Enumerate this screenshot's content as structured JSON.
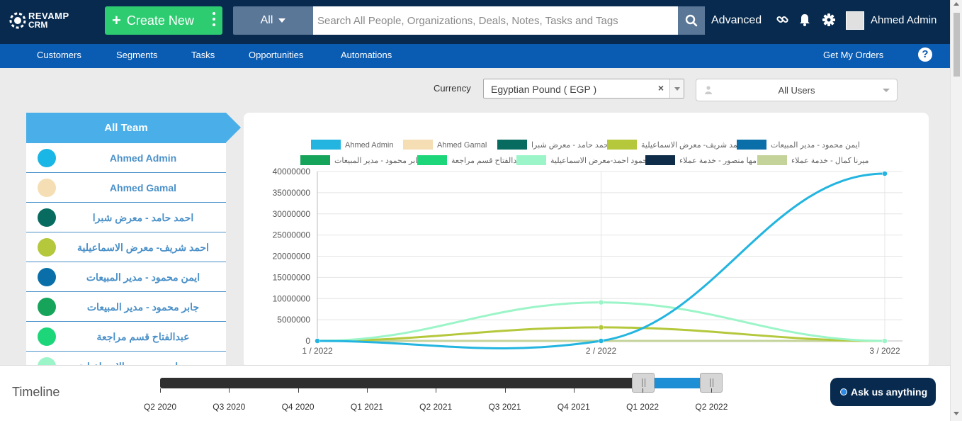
{
  "header": {
    "logo_line1": "REVAMP",
    "logo_line2": "CRM",
    "create_label": "Create New",
    "search_scope": "All",
    "search_placeholder": "Search All People, Organizations, Deals, Notes, Tasks and Tags",
    "advanced_label": "Advanced",
    "user_name": "Ahmed Admin"
  },
  "nav": {
    "items": [
      "Customers",
      "Segments",
      "Tasks",
      "Opportunities",
      "Automations"
    ],
    "right_item": "Get My Orders",
    "help_label": "?"
  },
  "filters": {
    "currency_label": "Currency",
    "currency_value": "Egyptian Pound ( EGP )",
    "clear_symbol": "×",
    "users_value": "All Users"
  },
  "team": {
    "header": "All Team",
    "members": [
      {
        "name": "Ahmed Admin",
        "color": "#1ab6e6"
      },
      {
        "name": "Ahmed Gamal",
        "color": "#f5deb3"
      },
      {
        "name": "احمد حامد - معرض شبرا",
        "color": "#086b60"
      },
      {
        "name": "احمد شريف- معرض الاسماعيلية",
        "color": "#b5c83c"
      },
      {
        "name": "ايمن محمود - مدير المبيعات",
        "color": "#0a6fa8"
      },
      {
        "name": "جابر محمود - مدير المبيعات",
        "color": "#16a45a"
      },
      {
        "name": "عبدالفتاح قسم مراجعة",
        "color": "#1ed67a"
      },
      {
        "name": "محمود احمد-معرض الاسماعيلية",
        "color": "#9cf5c8"
      }
    ]
  },
  "chart_data": {
    "type": "line",
    "categories": [
      "1 / 2022",
      "2 / 2022",
      "3 / 2022"
    ],
    "ylim": [
      0,
      40000000
    ],
    "yticks": [
      0,
      5000000,
      10000000,
      15000000,
      20000000,
      25000000,
      30000000,
      35000000,
      40000000
    ],
    "grid": true,
    "legend_position": "top",
    "series": [
      {
        "name": "Ahmed Admin",
        "color": "#23b5e0",
        "values": [
          0,
          0,
          39500000
        ]
      },
      {
        "name": "Ahmed Gamal",
        "color": "#f5deb3",
        "values": [
          0,
          0,
          0
        ]
      },
      {
        "name": "احمد حامد - معرض شبرا",
        "color": "#086b60",
        "values": [
          0,
          0,
          0
        ]
      },
      {
        "name": "احمد شريف- معرض الاسماعيلية",
        "color": "#b5c83c",
        "values": [
          0,
          3200000,
          0
        ]
      },
      {
        "name": "ايمن محمود - مدير المبيعات",
        "color": "#0a6fa8",
        "values": [
          0,
          0,
          0
        ]
      },
      {
        "name": "جابر محمود - مدير المبيعات",
        "color": "#16a45a",
        "values": [
          0,
          0,
          0
        ]
      },
      {
        "name": "عبدالفتاح قسم مراجعة",
        "color": "#1ed67a",
        "values": [
          0,
          0,
          0
        ]
      },
      {
        "name": "محمود احمد-معرض الاسماعيلية",
        "color": "#9cf5c8",
        "values": [
          0,
          9100000,
          0
        ]
      },
      {
        "name": "مها منصور - خدمة عملاء",
        "color": "#0f2c48",
        "values": [
          0,
          0,
          0
        ]
      },
      {
        "name": "ميرنا كمال - خدمة عملاء",
        "color": "#c4d39a",
        "values": [
          0,
          0,
          0
        ]
      }
    ]
  },
  "timeline": {
    "title": "Timeline",
    "labels": [
      "Q2 2020",
      "Q3 2020",
      "Q4 2020",
      "Q1 2021",
      "Q2 2021",
      "Q3 2021",
      "Q4 2021",
      "Q1 2022",
      "Q2 2022"
    ],
    "selection": [
      "Q1 2022",
      "Q2 2022"
    ]
  },
  "chat": {
    "label": "Ask us anything"
  },
  "icons": [
    "logo-icon",
    "plus-icon",
    "kebab-icon",
    "caret-down-icon",
    "search-icon",
    "link-icon",
    "bell-icon",
    "gear-icon",
    "avatar",
    "help-icon",
    "user-icon",
    "chat-icon"
  ]
}
